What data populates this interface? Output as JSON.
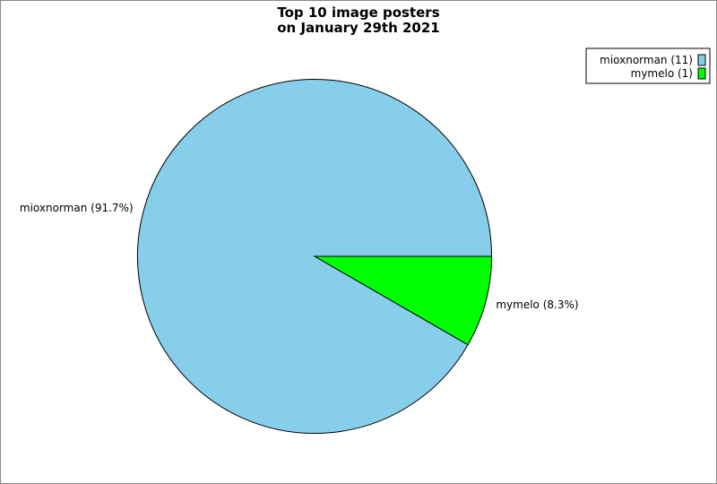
{
  "chart_data": {
    "type": "pie",
    "title": [
      "Top 10 image posters",
      "on January 29th 2021"
    ],
    "slices": [
      {
        "name": "mioxnorman",
        "value": 11,
        "percent": 91.7,
        "label": "mioxnorman (91.7%)",
        "legend": "mioxnorman (11)",
        "color": "#87ceeb"
      },
      {
        "name": "mymelo",
        "value": 1,
        "percent": 8.3,
        "label": "mymelo (8.3%)",
        "legend": "mymelo (1)",
        "color": "#00ff00"
      }
    ],
    "legend_position": "top-right"
  }
}
